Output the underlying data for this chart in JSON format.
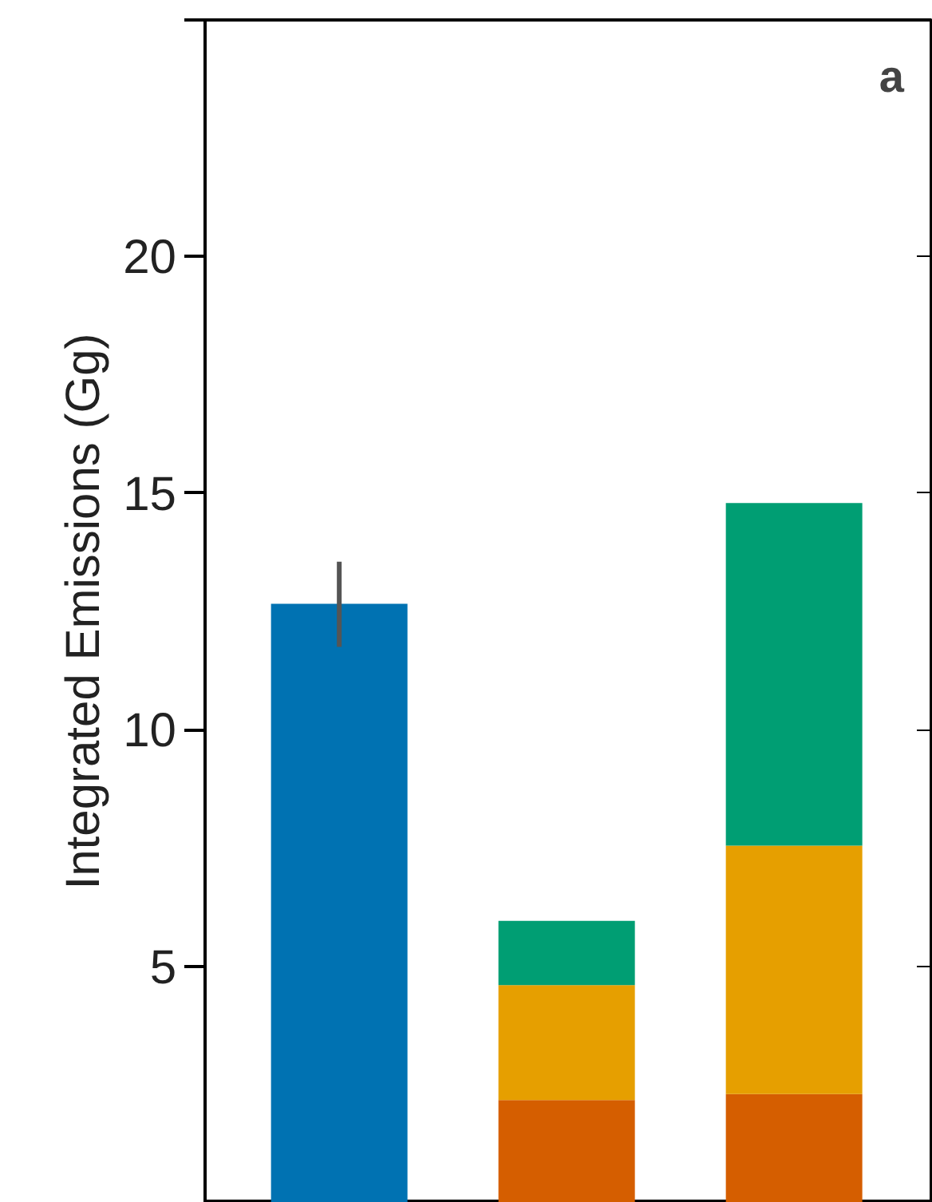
{
  "chart_data": {
    "type": "bar",
    "stacked": true,
    "ylabel": "Integrated Emissions (Gg)",
    "categories": [
      null,
      null,
      null
    ],
    "series": [
      {
        "color": "#0072b2",
        "values": [
          12.66,
          null,
          null
        ],
        "errors": [
          [
            11.75,
            13.55
          ],
          null,
          null
        ]
      },
      {
        "color": "#d55e00",
        "values": [
          null,
          2.17,
          2.3
        ]
      },
      {
        "color": "#e69f00",
        "values": [
          null,
          2.43,
          5.25
        ]
      },
      {
        "color": "#009e73",
        "values": [
          null,
          1.36,
          7.24
        ]
      }
    ],
    "ylim": [
      0,
      25
    ],
    "yticks": [
      5,
      10,
      15,
      20,
      {
        "value": 25,
        "label": null
      }
    ],
    "grid": false,
    "annotations": [
      "a"
    ]
  }
}
